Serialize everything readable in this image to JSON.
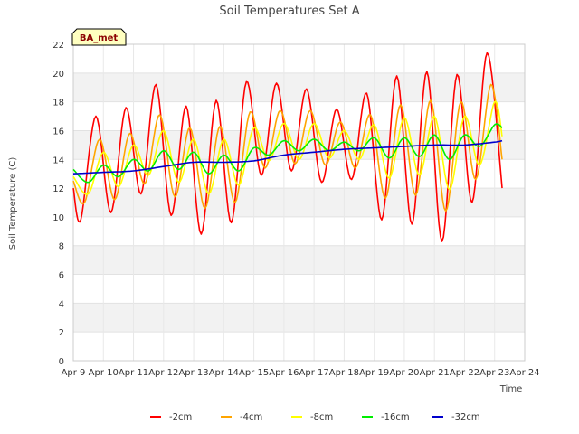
{
  "chart_data": {
    "type": "line",
    "title": "Soil Temperatures Set A",
    "xlabel": "Time",
    "ylabel": "Soil Temperature (C)",
    "badge": "BA_met",
    "ylim": [
      0,
      22
    ],
    "yticks": [
      0,
      2,
      4,
      6,
      8,
      10,
      12,
      14,
      16,
      18,
      20,
      22
    ],
    "xlim": [
      "Apr 9",
      "Apr 24"
    ],
    "xticks": [
      "Apr 9",
      "Apr 10",
      "Apr 11",
      "Apr 12",
      "Apr 13",
      "Apr 14",
      "Apr 15",
      "Apr 16",
      "Apr 17",
      "Apr 18",
      "Apr 19",
      "Apr 20",
      "Apr 21",
      "Apr 22",
      "Apr 23",
      "Apr 24"
    ],
    "grid": true,
    "legend_position": "bottom",
    "series": [
      {
        "name": "-2cm",
        "color": "#ff0000",
        "points": [
          [
            "Apr 9 00:00",
            12.0
          ],
          [
            "Apr 9 06:00",
            9.8
          ],
          [
            "Apr 9 18:00",
            17.0
          ],
          [
            "Apr 10 06:00",
            10.3
          ],
          [
            "Apr 10 18:00",
            17.6
          ],
          [
            "Apr 11 06:00",
            11.6
          ],
          [
            "Apr 11 18:00",
            19.2
          ],
          [
            "Apr 12 06:00",
            10.1
          ],
          [
            "Apr 12 18:00",
            17.7
          ],
          [
            "Apr 13 06:00",
            8.8
          ],
          [
            "Apr 13 18:00",
            18.1
          ],
          [
            "Apr 14 06:00",
            9.6
          ],
          [
            "Apr 14 18:00",
            19.4
          ],
          [
            "Apr 15 06:00",
            12.9
          ],
          [
            "Apr 15 18:00",
            19.3
          ],
          [
            "Apr 16 06:00",
            13.2
          ],
          [
            "Apr 16 18:00",
            18.9
          ],
          [
            "Apr 17 06:00",
            12.4
          ],
          [
            "Apr 17 18:00",
            17.5
          ],
          [
            "Apr 18 06:00",
            12.6
          ],
          [
            "Apr 18 18:00",
            18.6
          ],
          [
            "Apr 19 06:00",
            9.8
          ],
          [
            "Apr 19 18:00",
            19.8
          ],
          [
            "Apr 20 06:00",
            9.5
          ],
          [
            "Apr 20 18:00",
            20.1
          ],
          [
            "Apr 21 06:00",
            8.3
          ],
          [
            "Apr 21 18:00",
            19.9
          ],
          [
            "Apr 22 06:00",
            11.0
          ],
          [
            "Apr 22 18:00",
            21.4
          ],
          [
            "Apr 23 06:00",
            12.0
          ]
        ]
      },
      {
        "name": "-4cm",
        "color": "#ffa500",
        "points": [
          [
            "Apr 9 00:00",
            12.5
          ],
          [
            "Apr 9 09:00",
            11.0
          ],
          [
            "Apr 9 21:00",
            15.4
          ],
          [
            "Apr 10 09:00",
            11.2
          ],
          [
            "Apr 10 21:00",
            15.8
          ],
          [
            "Apr 11 09:00",
            12.3
          ],
          [
            "Apr 11 21:00",
            17.1
          ],
          [
            "Apr 12 09:00",
            11.4
          ],
          [
            "Apr 12 21:00",
            16.2
          ],
          [
            "Apr 13 09:00",
            10.6
          ],
          [
            "Apr 13 21:00",
            16.3
          ],
          [
            "Apr 14 09:00",
            11.0
          ],
          [
            "Apr 14 21:00",
            17.3
          ],
          [
            "Apr 15 09:00",
            13.4
          ],
          [
            "Apr 15 21:00",
            17.4
          ],
          [
            "Apr 16 09:00",
            13.7
          ],
          [
            "Apr 16 21:00",
            17.4
          ],
          [
            "Apr 17 09:00",
            13.6
          ],
          [
            "Apr 17 21:00",
            16.6
          ],
          [
            "Apr 18 09:00",
            13.4
          ],
          [
            "Apr 18 21:00",
            17.1
          ],
          [
            "Apr 19 09:00",
            11.3
          ],
          [
            "Apr 19 21:00",
            17.8
          ],
          [
            "Apr 20 09:00",
            11.5
          ],
          [
            "Apr 20 21:00",
            18.1
          ],
          [
            "Apr 21 09:00",
            10.4
          ],
          [
            "Apr 21 21:00",
            18.0
          ],
          [
            "Apr 22 09:00",
            12.6
          ],
          [
            "Apr 22 21:00",
            19.2
          ],
          [
            "Apr 23 06:00",
            14.0
          ]
        ]
      },
      {
        "name": "-8cm",
        "color": "#ffff00",
        "points": [
          [
            "Apr 9 00:00",
            12.8
          ],
          [
            "Apr 9 12:00",
            11.6
          ],
          [
            "Apr 10 00:00",
            14.5
          ],
          [
            "Apr 10 12:00",
            12.1
          ],
          [
            "Apr 11 00:00",
            15.0
          ],
          [
            "Apr 11 12:00",
            12.9
          ],
          [
            "Apr 12 00:00",
            16.0
          ],
          [
            "Apr 12 12:00",
            12.4
          ],
          [
            "Apr 13 00:00",
            15.4
          ],
          [
            "Apr 13 12:00",
            11.6
          ],
          [
            "Apr 14 00:00",
            15.4
          ],
          [
            "Apr 14 12:00",
            12.2
          ],
          [
            "Apr 15 00:00",
            16.2
          ],
          [
            "Apr 15 12:00",
            13.9
          ],
          [
            "Apr 16 00:00",
            16.5
          ],
          [
            "Apr 16 12:00",
            14.0
          ],
          [
            "Apr 17 00:00",
            16.5
          ],
          [
            "Apr 17 12:00",
            14.1
          ],
          [
            "Apr 18 00:00",
            16.0
          ],
          [
            "Apr 18 12:00",
            14.0
          ],
          [
            "Apr 19 00:00",
            16.4
          ],
          [
            "Apr 19 12:00",
            12.7
          ],
          [
            "Apr 20 00:00",
            16.9
          ],
          [
            "Apr 20 12:00",
            12.9
          ],
          [
            "Apr 21 00:00",
            17.0
          ],
          [
            "Apr 21 12:00",
            11.9
          ],
          [
            "Apr 22 00:00",
            17.0
          ],
          [
            "Apr 22 12:00",
            13.6
          ],
          [
            "Apr 23 00:00",
            18.0
          ],
          [
            "Apr 23 06:00",
            15.6
          ]
        ]
      },
      {
        "name": "-16cm",
        "color": "#00ee00",
        "points": [
          [
            "Apr 9 00:00",
            13.3
          ],
          [
            "Apr 9 12:00",
            12.4
          ],
          [
            "Apr 10 00:00",
            13.6
          ],
          [
            "Apr 10 12:00",
            12.8
          ],
          [
            "Apr 11 00:00",
            14.0
          ],
          [
            "Apr 11 12:00",
            13.2
          ],
          [
            "Apr 12 00:00",
            14.6
          ],
          [
            "Apr 12 12:00",
            13.3
          ],
          [
            "Apr 13 00:00",
            14.5
          ],
          [
            "Apr 13 12:00",
            13.0
          ],
          [
            "Apr 14 00:00",
            14.3
          ],
          [
            "Apr 14 12:00",
            13.2
          ],
          [
            "Apr 15 00:00",
            14.8
          ],
          [
            "Apr 15 12:00",
            14.3
          ],
          [
            "Apr 16 00:00",
            15.3
          ],
          [
            "Apr 16 12:00",
            14.6
          ],
          [
            "Apr 17 00:00",
            15.4
          ],
          [
            "Apr 17 12:00",
            14.6
          ],
          [
            "Apr 18 00:00",
            15.2
          ],
          [
            "Apr 18 12:00",
            14.6
          ],
          [
            "Apr 19 00:00",
            15.5
          ],
          [
            "Apr 19 12:00",
            14.1
          ],
          [
            "Apr 20 00:00",
            15.5
          ],
          [
            "Apr 20 12:00",
            14.2
          ],
          [
            "Apr 21 00:00",
            15.7
          ],
          [
            "Apr 21 12:00",
            14.0
          ],
          [
            "Apr 22 00:00",
            15.7
          ],
          [
            "Apr 22 12:00",
            14.9
          ],
          [
            "Apr 23 00:00",
            16.4
          ],
          [
            "Apr 23 06:00",
            16.2
          ]
        ]
      },
      {
        "name": "-32cm",
        "color": "#0000cc",
        "points": [
          [
            "Apr 9 00:00",
            13.0
          ],
          [
            "Apr 10 00:00",
            13.1
          ],
          [
            "Apr 11 00:00",
            13.2
          ],
          [
            "Apr 12 00:00",
            13.5
          ],
          [
            "Apr 13 00:00",
            13.8
          ],
          [
            "Apr 14 00:00",
            13.8
          ],
          [
            "Apr 15 00:00",
            13.9
          ],
          [
            "Apr 16 00:00",
            14.3
          ],
          [
            "Apr 17 00:00",
            14.5
          ],
          [
            "Apr 18 00:00",
            14.7
          ],
          [
            "Apr 19 00:00",
            14.8
          ],
          [
            "Apr 20 00:00",
            14.9
          ],
          [
            "Apr 21 00:00",
            15.0
          ],
          [
            "Apr 22 00:00",
            15.0
          ],
          [
            "Apr 23 00:00",
            15.2
          ],
          [
            "Apr 23 06:00",
            15.3
          ]
        ]
      }
    ]
  }
}
